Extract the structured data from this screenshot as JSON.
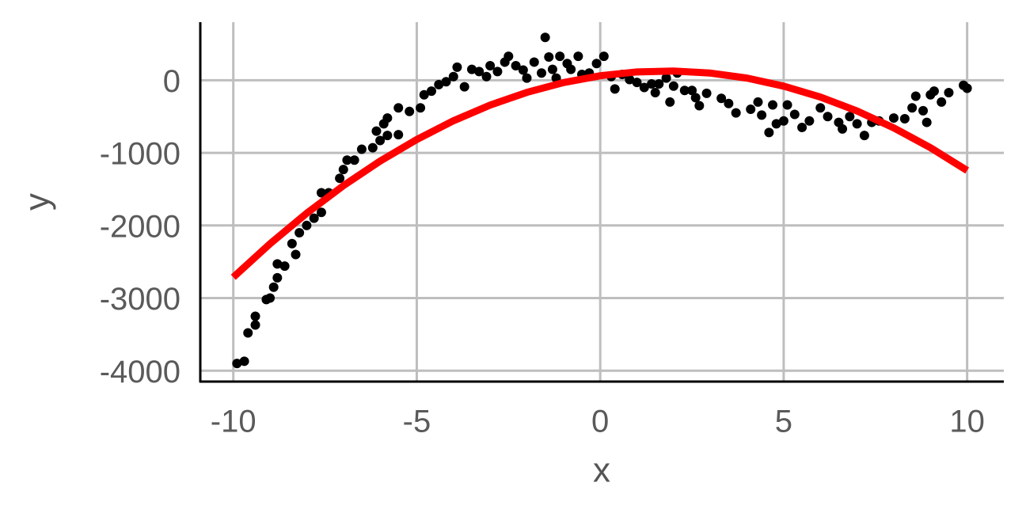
{
  "chart_data": {
    "type": "scatter",
    "x_label": "x",
    "y_label": "y",
    "xlim": [
      -10.9,
      11
    ],
    "ylim": [
      -4150,
      800
    ],
    "xticks": [
      -10,
      -5,
      0,
      5,
      10
    ],
    "yticks": [
      -4000,
      -3000,
      -2000,
      -1000,
      0
    ],
    "grid": true,
    "series": [
      {
        "type": "scatter",
        "color": "#000000",
        "x": [
          -9.9,
          -9.7,
          -9.6,
          -9.4,
          -9.4,
          -9.1,
          -9.0,
          -8.9,
          -8.8,
          -8.8,
          -8.6,
          -8.4,
          -8.3,
          -8.2,
          -8.0,
          -7.8,
          -7.6,
          -7.6,
          -7.4,
          -7.1,
          -7.0,
          -6.9,
          -6.7,
          -6.5,
          -6.2,
          -6.1,
          -6.0,
          -5.9,
          -5.8,
          -5.8,
          -5.5,
          -5.5,
          -5.2,
          -4.9,
          -4.8,
          -4.6,
          -4.4,
          -4.2,
          -4.0,
          -3.9,
          -3.7,
          -3.5,
          -3.3,
          -3.1,
          -3.0,
          -2.8,
          -2.6,
          -2.5,
          -2.3,
          -2.1,
          -2.0,
          -1.8,
          -1.6,
          -1.5,
          -1.4,
          -1.3,
          -1.2,
          -1.1,
          -0.9,
          -0.8,
          -0.6,
          -0.5,
          -0.3,
          -0.1,
          0.1,
          0.3,
          0.4,
          0.6,
          0.8,
          1.0,
          1.2,
          1.4,
          1.5,
          1.6,
          1.8,
          1.9,
          2.0,
          2.1,
          2.3,
          2.5,
          2.6,
          2.7,
          2.9,
          3.3,
          3.5,
          3.7,
          4.1,
          4.3,
          4.4,
          4.6,
          4.7,
          4.8,
          5.0,
          5.1,
          5.3,
          5.5,
          5.7,
          6.0,
          6.2,
          6.5,
          6.6,
          6.8,
          7.0,
          7.2,
          7.4,
          7.6,
          8.0,
          8.3,
          8.5,
          8.6,
          8.8,
          8.9,
          9.0,
          9.1,
          9.3,
          9.5,
          9.9,
          10.0
        ],
        "values": [
          -3900,
          -3870,
          -3480,
          -3250,
          -3370,
          -3020,
          -3000,
          -2850,
          -2720,
          -2530,
          -2560,
          -2250,
          -2400,
          -2100,
          -2000,
          -1900,
          -1820,
          -1550,
          -1550,
          -1350,
          -1230,
          -1100,
          -1100,
          -950,
          -930,
          -700,
          -830,
          -600,
          -520,
          -760,
          -750,
          -380,
          -430,
          -380,
          -200,
          -150,
          -60,
          -20,
          50,
          180,
          -90,
          150,
          120,
          50,
          200,
          120,
          250,
          330,
          200,
          140,
          30,
          250,
          100,
          590,
          320,
          150,
          30,
          330,
          230,
          150,
          330,
          80,
          100,
          230,
          330,
          50,
          -120,
          80,
          10,
          -30,
          -100,
          -50,
          -170,
          -50,
          30,
          -300,
          -80,
          100,
          -140,
          -140,
          -240,
          -350,
          -180,
          -250,
          -320,
          -450,
          -400,
          -300,
          -480,
          -720,
          -340,
          -600,
          -560,
          -340,
          -470,
          -650,
          -560,
          -380,
          -500,
          -580,
          -670,
          -500,
          -600,
          -760,
          -580,
          -560,
          -520,
          -530,
          -380,
          -220,
          -420,
          -580,
          -200,
          -150,
          -300,
          -170,
          -70,
          -110
        ]
      },
      {
        "type": "line",
        "color": "#ff0000",
        "x": [
          -10,
          -9,
          -8,
          -7,
          -6,
          -5,
          -4,
          -3,
          -2,
          -1,
          0,
          1,
          2,
          3,
          4,
          5,
          6,
          7,
          8,
          9,
          10
        ],
        "values": [
          -2713,
          -2252,
          -1832,
          -1452,
          -1113,
          -816,
          -558,
          -342,
          -167,
          -32,
          62,
          115,
          127,
          99,
          30,
          -81,
          -231,
          -423,
          -656,
          -929,
          -1243
        ]
      }
    ]
  }
}
